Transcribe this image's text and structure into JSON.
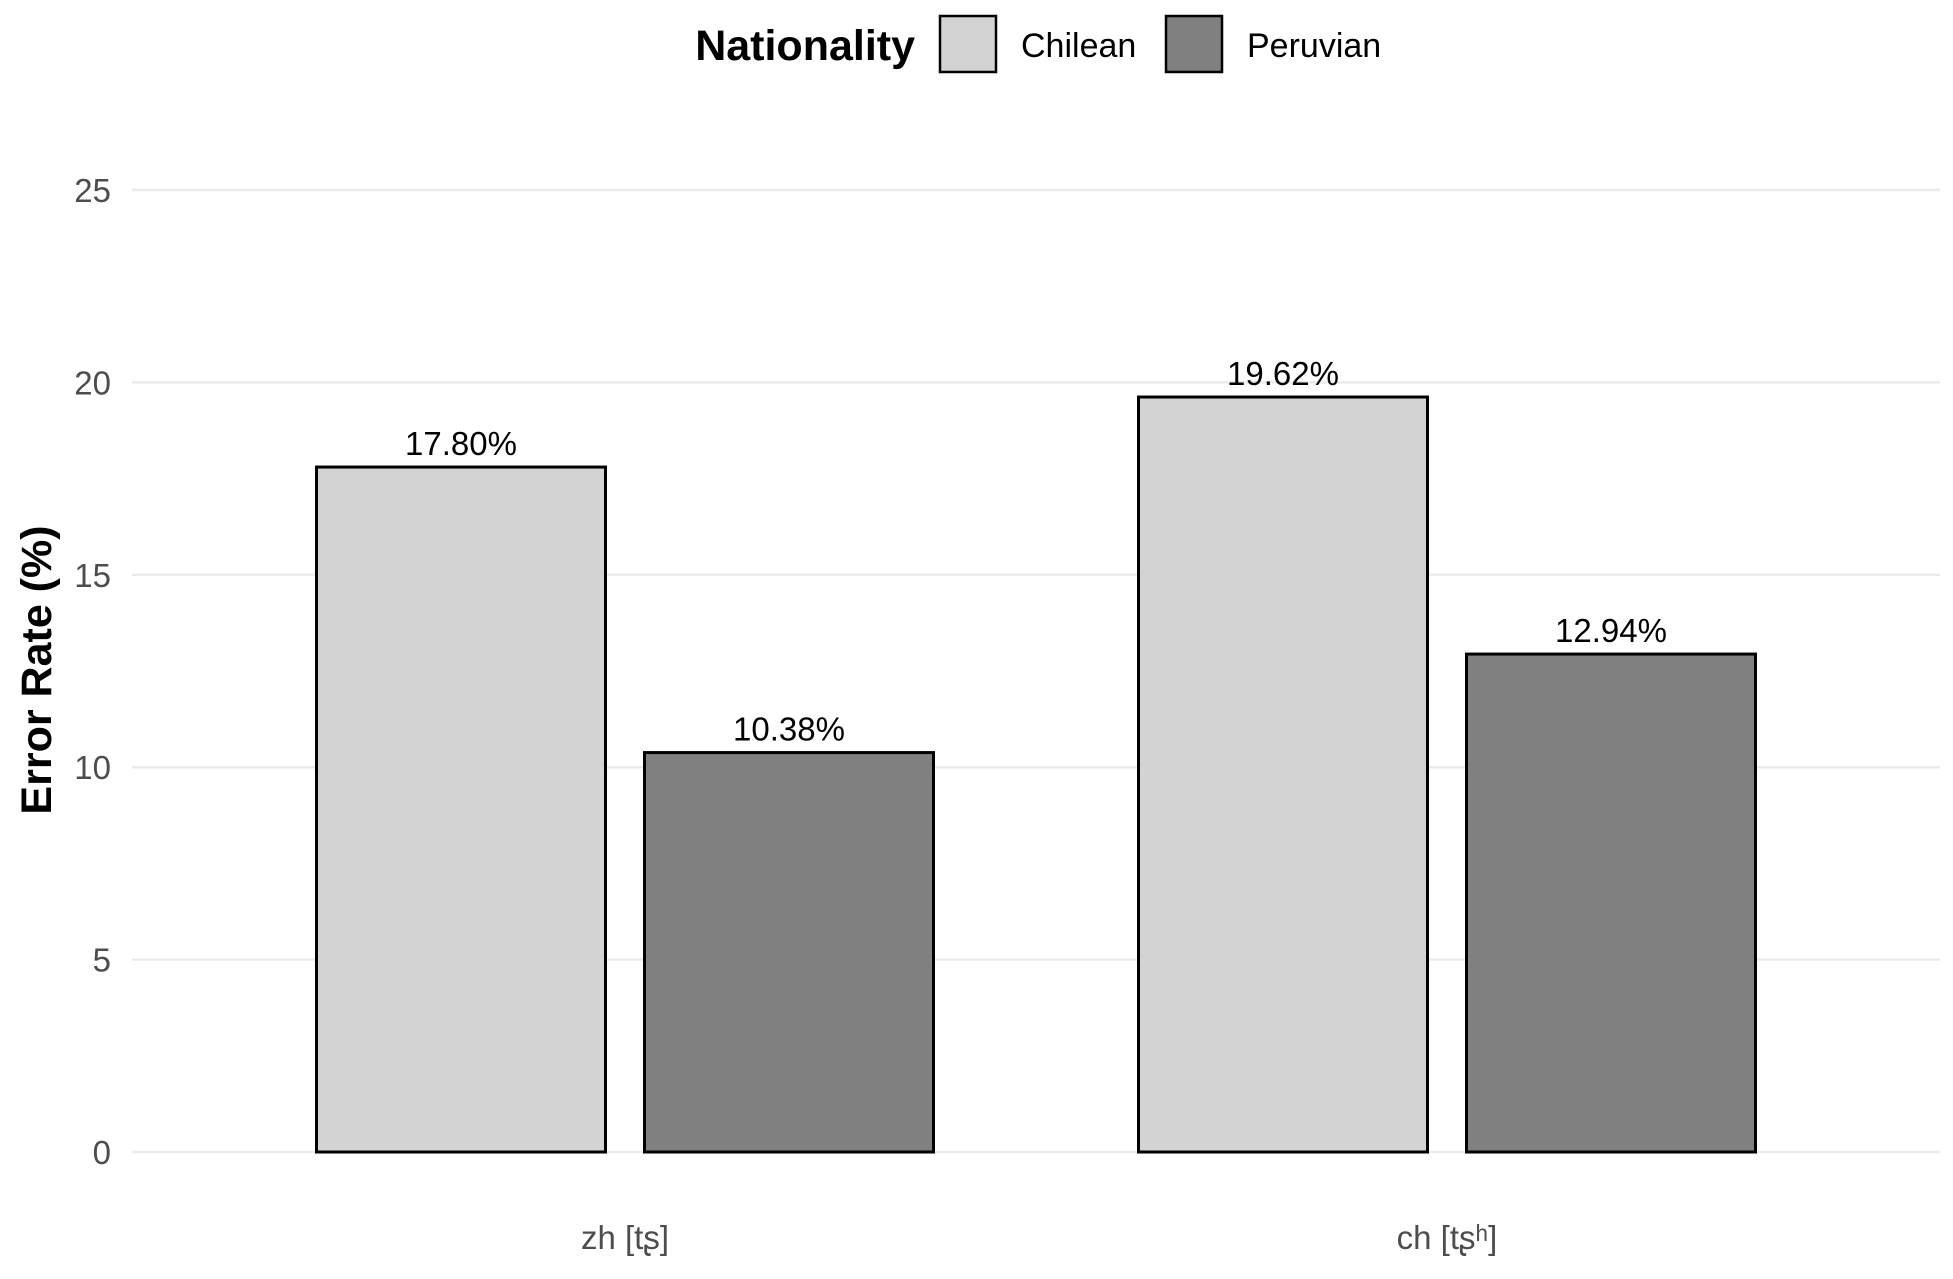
{
  "chart_data": {
    "type": "bar",
    "categories": [
      "zh [tʂ]",
      "ch [tʂʰ]"
    ],
    "series": [
      {
        "name": "Chilean",
        "values": [
          17.8,
          19.62
        ],
        "labels": [
          "17.80%",
          "19.62%"
        ],
        "color": "#d3d3d3"
      },
      {
        "name": "Peruvian",
        "values": [
          10.38,
          12.94
        ],
        "labels": [
          "10.38%",
          "12.94%"
        ],
        "color": "#808080"
      }
    ],
    "legend_title": "Nationality",
    "legend_position": "top",
    "xlabel": "",
    "ylabel": "Error Rate (%)",
    "ylim": [
      0,
      25
    ],
    "yticks": [
      0,
      5,
      10,
      15,
      20,
      25
    ],
    "grid": true,
    "colors": {
      "gridline": "#ebebeb",
      "tick_text": "#4d4d4d",
      "bar_border": "#000000"
    }
  }
}
